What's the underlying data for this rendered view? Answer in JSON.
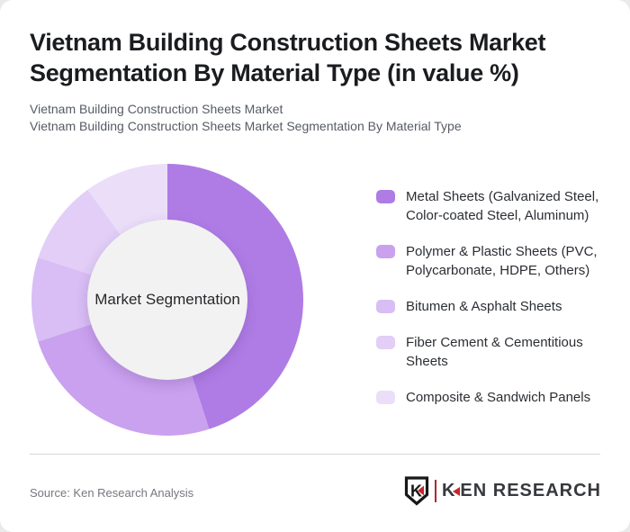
{
  "page": {
    "background_color": "#eaeaea",
    "card_color": "#ffffff"
  },
  "header": {
    "title": "Vietnam Building Construction Sheets Market Segmentation By Material Type (in value %)",
    "subtitle_lines": [
      "Vietnam Building Construction Sheets Market",
      "Vietnam Building Construction Sheets Market Segmentation By Material Type"
    ]
  },
  "chart_data": {
    "type": "pie",
    "variant": "donut",
    "title": "Vietnam Building Construction Sheets Market Segmentation By Material Type (in value %)",
    "center_label": "Market Segmentation",
    "units": "value %",
    "start_angle_deg": 0,
    "direction": "clockwise",
    "legend_position": "right",
    "inner_circle_color": "#f2f2f2",
    "segments": [
      {
        "label": "Metal Sheets (Galvanized Steel, Color-coated Steel, Aluminum)",
        "value": 45,
        "color": "#af7ce5"
      },
      {
        "label": "Polymer & Plastic Sheets (PVC, Polycarbonate, HDPE, Others)",
        "value": 25,
        "color": "#c9a1ef"
      },
      {
        "label": "Bitumen & Asphalt Sheets",
        "value": 10,
        "color": "#d8bef4"
      },
      {
        "label": "Fiber Cement & Cementitious Sheets",
        "value": 10,
        "color": "#e2cef7"
      },
      {
        "label": "Composite & Sandwich Panels",
        "value": 10,
        "color": "#eadef9"
      }
    ]
  },
  "footer": {
    "source": "Source: Ken Research Analysis",
    "logo": {
      "badge_letter": "K",
      "brand_k": "K",
      "brand_rest": "EN RESEARCH",
      "accent_color": "#c9252b"
    }
  }
}
